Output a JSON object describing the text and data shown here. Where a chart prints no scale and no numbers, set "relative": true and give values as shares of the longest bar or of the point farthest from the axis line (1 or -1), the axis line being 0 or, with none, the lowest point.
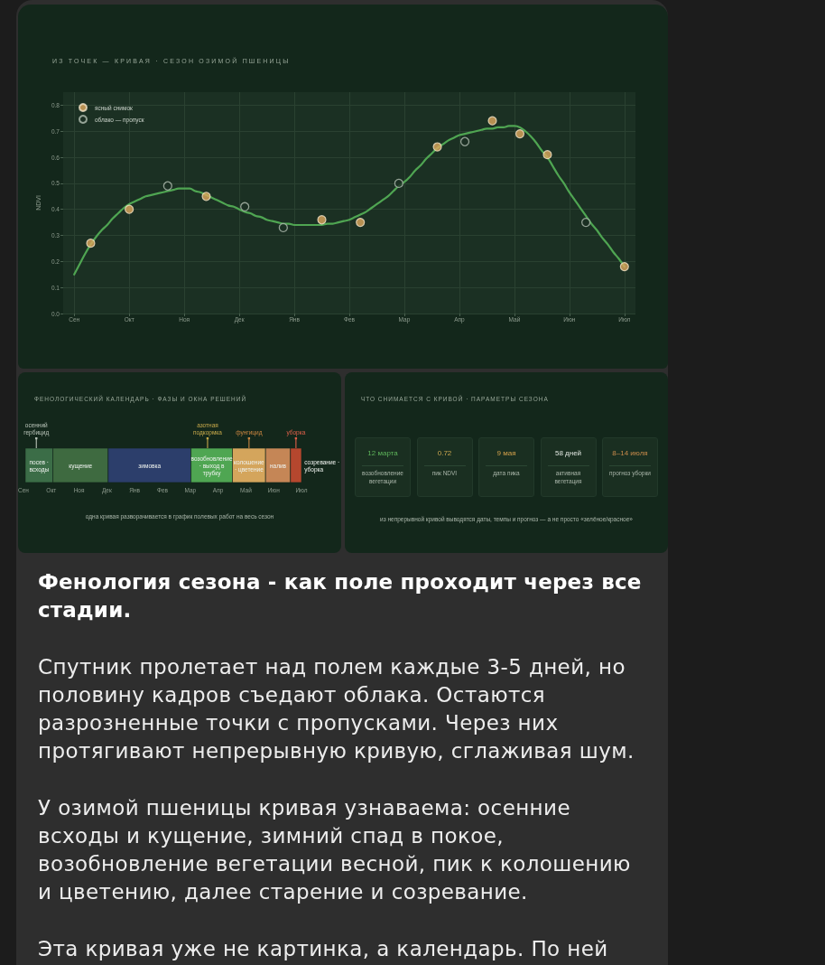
{
  "chart_data": [
    {
      "type": "line",
      "title": "ИЗ ТОЧЕК — КРИВАЯ · СЕЗОН ОЗИМОЙ ПШЕНИЦЫ",
      "ylabel": "NDVI",
      "categories": [
        null,
        null,
        "Сен",
        null,
        null,
        null,
        null,
        null,
        null,
        null,
        null,
        null,
        "Окт",
        null,
        null,
        null,
        null,
        null,
        null,
        null,
        null,
        null,
        "Ноя",
        null,
        null,
        null,
        null,
        null,
        null,
        null,
        null,
        null,
        "Дек",
        null,
        null,
        null,
        null,
        null,
        null,
        null,
        null,
        null,
        "Янв",
        null,
        null,
        null,
        null,
        null,
        null,
        null,
        null,
        null,
        "Фев",
        null,
        null,
        null,
        null,
        null,
        null,
        null,
        null,
        null,
        "Мар",
        null,
        null,
        null,
        null,
        null,
        null,
        null,
        null,
        null,
        "Апр",
        null,
        null,
        null,
        null,
        null,
        null,
        null,
        null,
        null,
        "Май",
        null,
        null,
        null,
        null,
        null,
        null,
        null,
        null,
        null,
        "Июн",
        null,
        null,
        null,
        null,
        null,
        null,
        null,
        null,
        null,
        "Июл",
        null,
        null
      ],
      "ylim": [
        0,
        0.85
      ],
      "yticks": [
        {
          "value": 0,
          "label": "0.0"
        },
        0.1,
        0.2,
        0.3,
        0.4,
        0.5,
        0.6,
        0.7,
        0.8
      ],
      "grid": true,
      "legend": "top left",
      "marker": "circle",
      "line_style": "solid",
      "series": [
        {
          "type": "line",
          "color": "#4fa552",
          "marker": "none",
          "values": [
            null,
            null,
            0.15,
            0.19,
            0.23,
            0.265,
            0.295,
            0.32,
            0.34,
            0.365,
            0.385,
            0.405,
            0.42,
            0.43,
            0.44,
            0.45,
            0.455,
            0.46,
            0.465,
            0.47,
            0.475,
            0.48,
            0.48,
            0.48,
            0.47,
            0.465,
            0.455,
            0.445,
            0.435,
            0.425,
            0.415,
            0.41,
            0.4,
            0.39,
            0.385,
            0.375,
            0.37,
            0.36,
            0.355,
            0.35,
            0.345,
            0.345,
            0.34,
            0.34,
            0.34,
            0.34,
            0.34,
            0.34,
            0.345,
            0.345,
            0.35,
            0.355,
            0.36,
            0.37,
            0.38,
            0.39,
            0.405,
            0.42,
            0.435,
            0.45,
            0.47,
            0.49,
            0.505,
            0.525,
            0.55,
            0.57,
            0.595,
            0.615,
            0.635,
            0.65,
            0.665,
            0.675,
            0.685,
            0.69,
            0.695,
            0.7,
            0.705,
            0.71,
            0.71,
            0.715,
            0.715,
            0.72,
            0.72,
            0.715,
            0.7,
            0.68,
            0.655,
            0.625,
            0.6,
            0.565,
            0.53,
            0.5,
            0.465,
            0.435,
            0.405,
            0.375,
            0.345,
            0.32,
            0.29,
            0.265,
            0.235,
            0.21,
            0.18,
            null,
            null
          ]
        },
        {
          "type": "scatter",
          "name": "ясный снимок",
          "color": "#dea95e",
          "values": [
            null,
            null,
            null,
            null,
            null,
            0.27,
            null,
            null,
            null,
            null,
            null,
            null,
            0.4,
            null,
            null,
            null,
            null,
            null,
            null,
            null,
            null,
            null,
            null,
            null,
            null,
            null,
            0.45,
            null,
            null,
            null,
            null,
            null,
            null,
            null,
            null,
            null,
            null,
            null,
            null,
            null,
            null,
            null,
            null,
            null,
            null,
            null,
            null,
            0.36,
            null,
            null,
            null,
            null,
            null,
            null,
            0.35,
            null,
            null,
            null,
            null,
            null,
            null,
            null,
            null,
            null,
            null,
            null,
            null,
            null,
            0.64,
            null,
            null,
            null,
            null,
            null,
            null,
            null,
            null,
            null,
            0.74,
            null,
            null,
            null,
            null,
            0.69,
            null,
            null,
            null,
            null,
            0.61,
            null,
            null,
            null,
            null,
            null,
            null,
            null,
            null,
            null,
            null,
            null,
            null,
            null,
            0.18,
            null,
            null
          ]
        },
        {
          "type": "scatter",
          "name": "облако — пропуск",
          "color": "#b3bfb3",
          "values": [
            null,
            null,
            null,
            null,
            null,
            null,
            null,
            null,
            null,
            null,
            null,
            null,
            null,
            null,
            null,
            null,
            null,
            null,
            null,
            0.49,
            null,
            null,
            null,
            null,
            null,
            null,
            null,
            null,
            null,
            null,
            null,
            null,
            null,
            0.41,
            null,
            null,
            null,
            null,
            null,
            null,
            0.33,
            null,
            null,
            null,
            null,
            null,
            null,
            null,
            null,
            null,
            null,
            null,
            null,
            null,
            null,
            null,
            null,
            null,
            null,
            null,
            null,
            0.5,
            null,
            null,
            null,
            null,
            null,
            null,
            null,
            null,
            null,
            null,
            null,
            0.66,
            null,
            null,
            null,
            null,
            null,
            null,
            null,
            null,
            null,
            null,
            null,
            null,
            null,
            null,
            null,
            null,
            null,
            null,
            null,
            null,
            null,
            0.35,
            null,
            null,
            null,
            null,
            null,
            null,
            null,
            null,
            null
          ]
        }
      ]
    },
    {
      "type": "bar",
      "orientation": "horizontal",
      "stacked": true,
      "relative": true,
      "title": "ФЕНОЛОГИЧЕСКИЙ КАЛЕНДАРЬ · ФАЗЫ И ОКНА РЕШЕНИЙ",
      "categories": [
        null
      ],
      "series": [
        {
          "name": "посев · всходы",
          "color": "#3b6d47",
          "values": [
            0.1
          ]
        },
        {
          "name": "кущение",
          "color": "#3e6a40",
          "values": [
            0.2
          ]
        },
        {
          "name": "зимовка",
          "color": "#2c3e6b",
          "values": [
            0.3
          ]
        },
        {
          "name": "возобновление · выход в трубку",
          "color": "#4fa652",
          "values": [
            0.15
          ]
        },
        {
          "name": "колошение · цветение",
          "color": "#d4a55c",
          "values": [
            0.12
          ]
        },
        {
          "name": "налив",
          "color": "#c58656",
          "values": [
            0.09
          ]
        },
        {
          "name": "созревание · уборка",
          "color": "#b5472e",
          "values": [
            0.04
          ]
        }
      ],
      "ref_lines": [
        {
          "axis": "x",
          "value": 0.04,
          "label": "осенний гербицид",
          "color": "#b7c2b7"
        },
        {
          "axis": "x",
          "value": 0.66,
          "label": "азотная подкормка",
          "color": "#c6a84a"
        },
        {
          "axis": "x",
          "value": 0.81,
          "label": "фунгицид",
          "color": "#c98540"
        },
        {
          "axis": "x",
          "value": 0.98,
          "label": "уборка",
          "color": "#e0604a"
        }
      ],
      "annotations": [
        "Сен",
        "Окт",
        "Ноя",
        "Дек",
        "Янв",
        "Фев",
        "Мар",
        "Апр",
        "Май",
        "Июн",
        "Июл",
        "одна кривая разворачивается в график полевых работ на весь сезон"
      ]
    },
    {
      "type": "other",
      "title": "ЧТО СНИМАЕТСЯ С КРИВОЙ · ПАРАМЕТРЫ СЕЗОНА",
      "categories": [
        "возобновление вегетации",
        "пик NDVI",
        "дата пика",
        "активная вегетация",
        "прогноз уборки"
      ],
      "value_labels": [
        "12 марта",
        "0.72",
        "9 мая",
        "58 дней",
        "8–14 июля"
      ],
      "annotations": [
        "из непрерывной кривой выводятся даты, темпы и прогноз — а не просто «зелёное/красное»"
      ]
    },
    {
      "type": "other",
      "title": "Фенология сезона - как поле проходит через все стадии.",
      "annotations": [
        "Спутник пролетает над полем каждые 3-5 дней, но половину кадров съедают облака. Остаются разрозненные точки с пропусками. Через них протягивают непрерывную кривую, сглаживая шум.",
        "У озимой пшеницы кривая узнаваема: осенние всходы и кущение, зимний спад в покое, возобновление вегетации весной, пик к колошению и цветению, далее старение и созревание.",
        "Эта кривая уже не картинка, а календарь. По ней"
      ]
    }
  ]
}
